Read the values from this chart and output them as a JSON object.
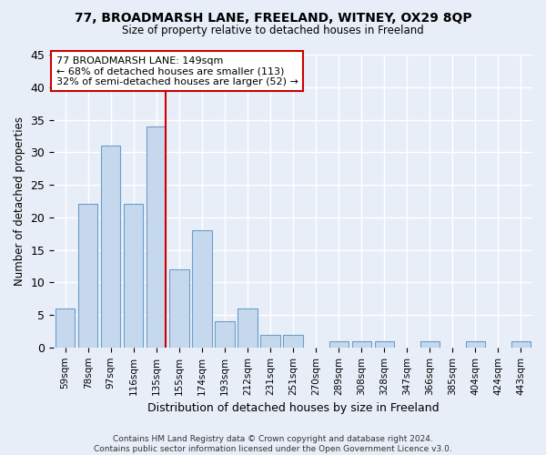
{
  "title1": "77, BROADMARSH LANE, FREELAND, WITNEY, OX29 8QP",
  "title2": "Size of property relative to detached houses in Freeland",
  "xlabel": "Distribution of detached houses by size in Freeland",
  "ylabel": "Number of detached properties",
  "categories": [
    "59sqm",
    "78sqm",
    "97sqm",
    "116sqm",
    "135sqm",
    "155sqm",
    "174sqm",
    "193sqm",
    "212sqm",
    "231sqm",
    "251sqm",
    "270sqm",
    "289sqm",
    "308sqm",
    "328sqm",
    "347sqm",
    "366sqm",
    "385sqm",
    "404sqm",
    "424sqm",
    "443sqm"
  ],
  "values": [
    6,
    22,
    31,
    22,
    34,
    12,
    18,
    4,
    6,
    2,
    2,
    0,
    1,
    1,
    1,
    0,
    1,
    0,
    1,
    0,
    1
  ],
  "bar_color": "#c5d8ee",
  "bar_edge_color": "#6b9ec8",
  "vline_color": "#cc0000",
  "annotation_text": "77 BROADMARSH LANE: 149sqm\n← 68% of detached houses are smaller (113)\n32% of semi-detached houses are larger (52) →",
  "annotation_box_color": "white",
  "annotation_box_edge": "#cc0000",
  "ylim": [
    0,
    45
  ],
  "yticks": [
    0,
    5,
    10,
    15,
    20,
    25,
    30,
    35,
    40,
    45
  ],
  "footnote": "Contains HM Land Registry data © Crown copyright and database right 2024.\nContains public sector information licensed under the Open Government Licence v3.0.",
  "background_color": "#e8eef8",
  "grid_color": "white",
  "vline_bar_index": 4
}
